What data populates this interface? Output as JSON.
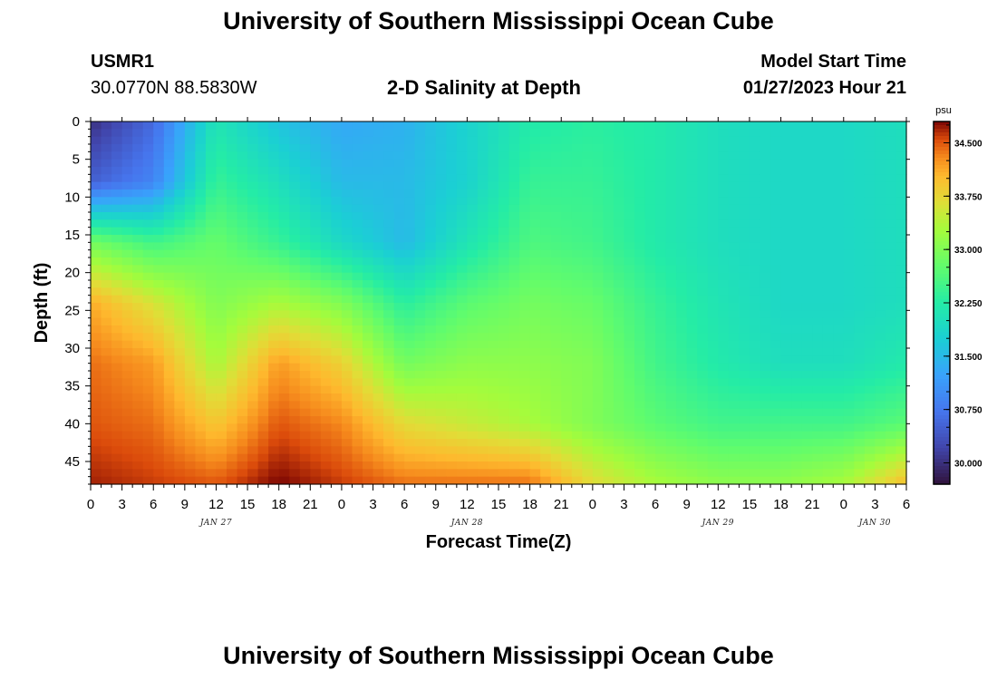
{
  "page": {
    "title_top": "University of Southern Mississippi Ocean Cube",
    "title_bottom": "University of Southern Mississippi Ocean Cube",
    "station_id": "USMR1",
    "location": "30.0770N  88.5830W",
    "plot_title": "2-D Salinity at Depth",
    "model_start_label": "Model Start Time",
    "model_start_value": "01/27/2023 Hour 21"
  },
  "chart_data": {
    "type": "heatmap",
    "title": "2-D Salinity at Depth",
    "xlabel": "Forecast Time(Z)",
    "ylabel": "Depth (ft)",
    "x_ticks": [
      "0",
      "3",
      "6",
      "9",
      "12",
      "15",
      "18",
      "21",
      "0",
      "3",
      "6",
      "9",
      "12",
      "15",
      "18",
      "21",
      "0",
      "3",
      "6",
      "9",
      "12",
      "15",
      "18",
      "21",
      "0",
      "3",
      "6"
    ],
    "x_dates": [
      {
        "label": "JAN 27",
        "tick_index": 4
      },
      {
        "label": "JAN 28",
        "tick_index": 12
      },
      {
        "label": "JAN 29",
        "tick_index": 20
      },
      {
        "label": "JAN 30",
        "tick_index": 25
      }
    ],
    "x_range_hours": [
      0,
      78
    ],
    "y_ticks": [
      0,
      5,
      10,
      15,
      20,
      25,
      30,
      35,
      40,
      45
    ],
    "y_range_ft": [
      0,
      48
    ],
    "colorbar": {
      "unit": "psu",
      "ticks": [
        "34.500",
        "33.750",
        "33.000",
        "32.250",
        "31.500",
        "30.750",
        "30.000"
      ],
      "range": [
        29.7,
        34.8
      ],
      "colormap": "turbo"
    },
    "grid_hours": [
      0,
      6,
      12,
      18,
      24,
      30,
      36,
      42,
      48,
      54,
      60,
      66,
      72,
      78
    ],
    "grid_depths_ft": [
      0,
      8,
      16,
      24,
      32,
      40,
      48
    ],
    "salinity_psu": [
      [
        30.0,
        30.6,
        32.1,
        31.6,
        31.3,
        31.4,
        31.8,
        32.2,
        32.3,
        32.2,
        32.0,
        31.9,
        31.9,
        32.0
      ],
      [
        30.5,
        30.9,
        32.4,
        32.0,
        31.5,
        31.5,
        31.8,
        32.4,
        32.4,
        32.2,
        32.0,
        31.9,
        31.9,
        32.0
      ],
      [
        32.9,
        32.5,
        32.8,
        32.4,
        31.9,
        31.5,
        32.1,
        32.6,
        32.5,
        32.2,
        32.0,
        31.9,
        31.9,
        32.0
      ],
      [
        34.1,
        33.6,
        33.0,
        33.3,
        33.0,
        32.3,
        32.7,
        32.9,
        32.8,
        32.4,
        32.1,
        31.9,
        31.9,
        32.0
      ],
      [
        34.4,
        34.2,
        33.3,
        34.2,
        33.8,
        32.9,
        33.1,
        33.1,
        33.0,
        32.5,
        32.2,
        32.0,
        32.0,
        32.2
      ],
      [
        34.5,
        34.4,
        33.9,
        34.5,
        34.3,
        33.7,
        33.5,
        33.3,
        33.0,
        32.7,
        32.5,
        32.5,
        32.5,
        32.7
      ],
      [
        34.7,
        34.6,
        34.5,
        34.8,
        34.6,
        34.4,
        34.4,
        34.4,
        33.7,
        33.3,
        33.1,
        33.1,
        33.3,
        34.0
      ]
    ]
  }
}
